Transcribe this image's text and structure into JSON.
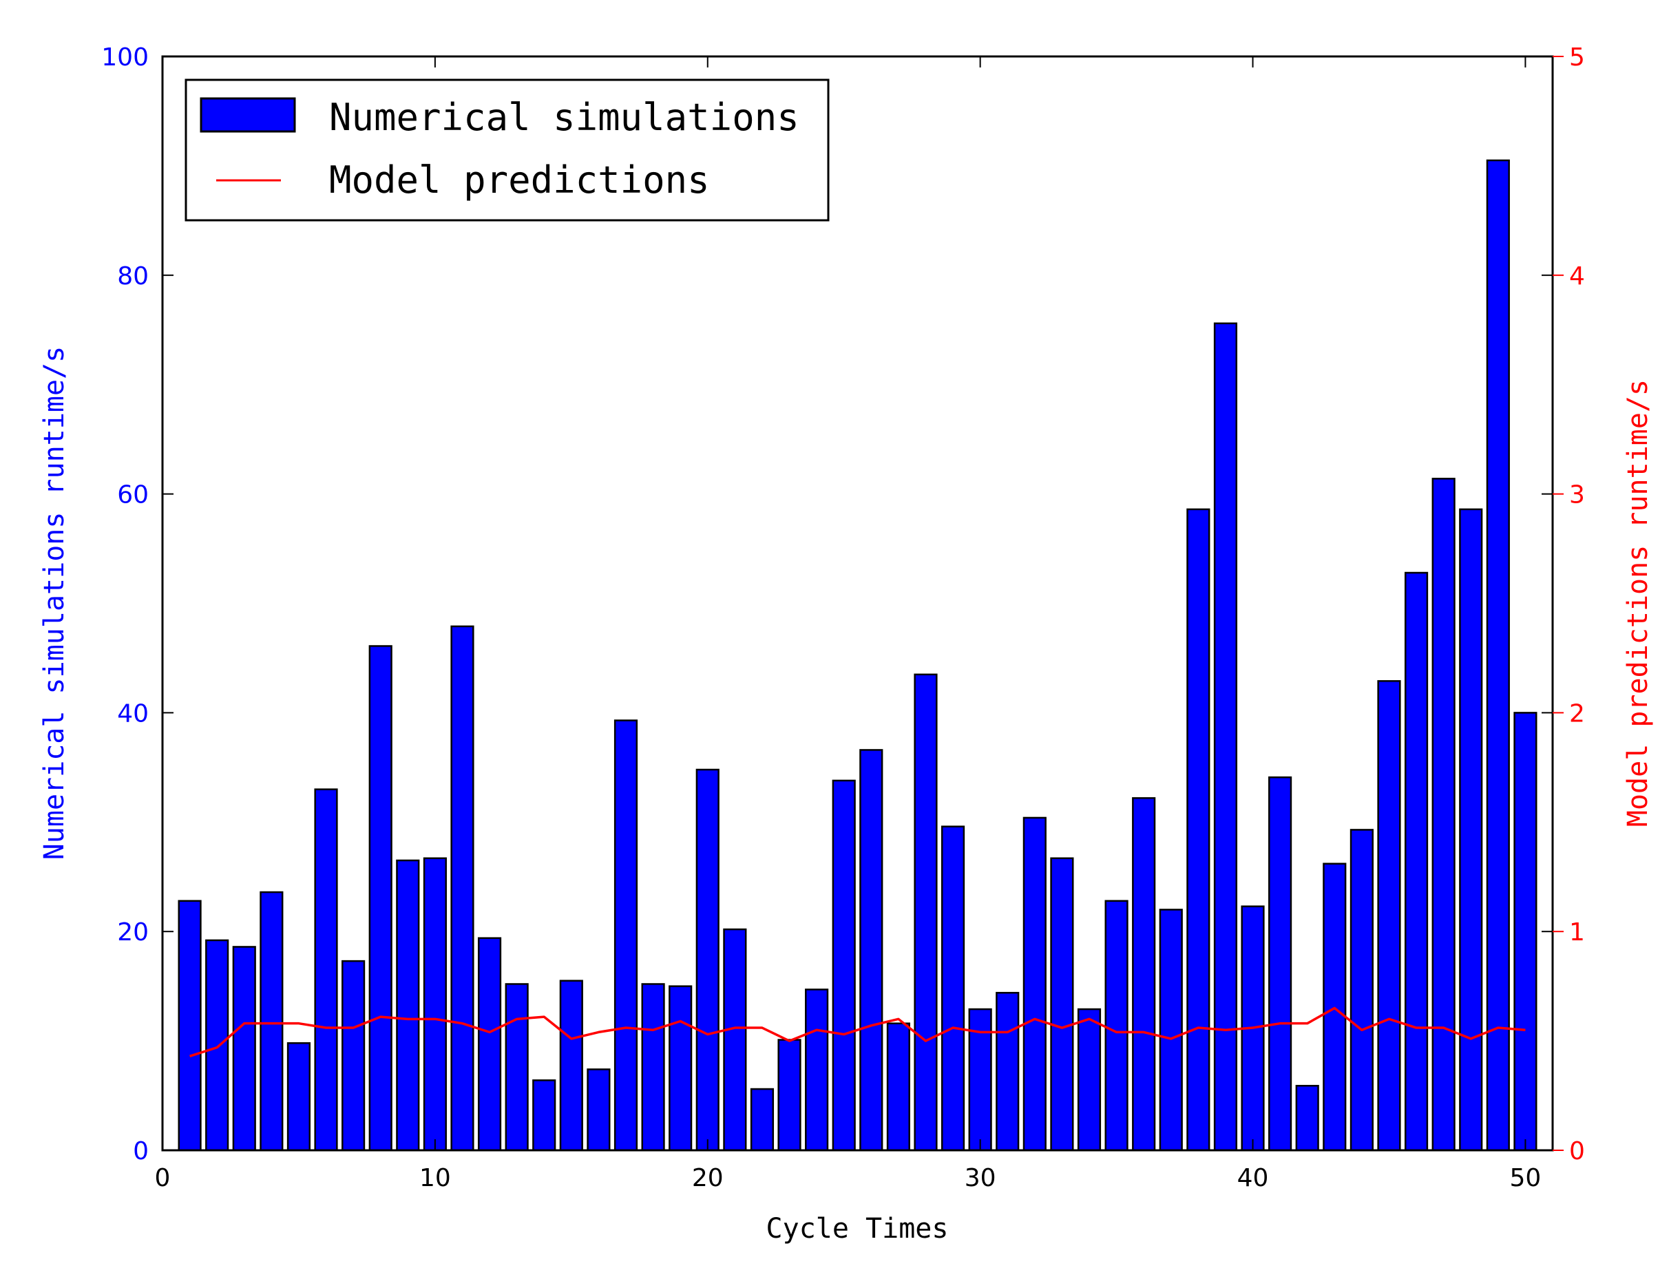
{
  "chart_data": {
    "type": "bar",
    "xlabel": "Cycle Times",
    "ylabel_left": "Numerical simulations runtime/s",
    "ylabel_right": "Model predictions runtime/s",
    "xlim": [
      0,
      51
    ],
    "ylim_left": [
      0,
      100
    ],
    "ylim_right": [
      0,
      5
    ],
    "x_ticks": [
      "0",
      "10",
      "20",
      "30",
      "40",
      "50"
    ],
    "y_left_ticks": [
      "0",
      "20",
      "40",
      "60",
      "80",
      "100"
    ],
    "y_right_ticks": [
      "0",
      "1",
      "2",
      "3",
      "4",
      "5"
    ],
    "legend_position": "top-left",
    "colors": {
      "bars": "#0000ff",
      "line": "#ff0000",
      "left_axis": "#0000ff",
      "right_axis": "#ff0000"
    },
    "x": [
      1,
      2,
      3,
      4,
      5,
      6,
      7,
      8,
      9,
      10,
      11,
      12,
      13,
      14,
      15,
      16,
      17,
      18,
      19,
      20,
      21,
      22,
      23,
      24,
      25,
      26,
      27,
      28,
      29,
      30,
      31,
      32,
      33,
      34,
      35,
      36,
      37,
      38,
      39,
      40,
      41,
      42,
      43,
      44,
      45,
      46,
      47,
      48,
      49,
      50
    ],
    "series": [
      {
        "name": "Numerical simulations",
        "type": "bar",
        "axis": "left",
        "values": [
          22.8,
          19.2,
          18.6,
          23.6,
          9.8,
          33.0,
          17.3,
          46.1,
          26.5,
          26.7,
          47.9,
          19.4,
          15.2,
          6.4,
          15.5,
          7.4,
          39.3,
          15.2,
          15.0,
          34.8,
          20.2,
          5.6,
          10.1,
          14.7,
          33.8,
          36.6,
          11.6,
          43.5,
          29.6,
          12.9,
          14.4,
          30.4,
          26.7,
          12.9,
          22.8,
          32.2,
          22.0,
          58.6,
          75.6,
          22.3,
          34.1,
          5.9,
          26.2,
          29.3,
          42.9,
          52.8,
          61.4,
          58.6,
          90.5,
          40.0
        ]
      },
      {
        "name": "Model predictions",
        "type": "line",
        "axis": "right",
        "values": [
          0.43,
          0.47,
          0.58,
          0.58,
          0.58,
          0.56,
          0.56,
          0.61,
          0.6,
          0.6,
          0.58,
          0.54,
          0.6,
          0.61,
          0.51,
          0.54,
          0.56,
          0.55,
          0.59,
          0.53,
          0.56,
          0.56,
          0.5,
          0.55,
          0.53,
          0.57,
          0.6,
          0.5,
          0.56,
          0.54,
          0.54,
          0.6,
          0.56,
          0.6,
          0.54,
          0.54,
          0.51,
          0.56,
          0.55,
          0.56,
          0.58,
          0.58,
          0.65,
          0.55,
          0.6,
          0.56,
          0.56,
          0.51,
          0.56,
          0.55
        ]
      }
    ]
  }
}
